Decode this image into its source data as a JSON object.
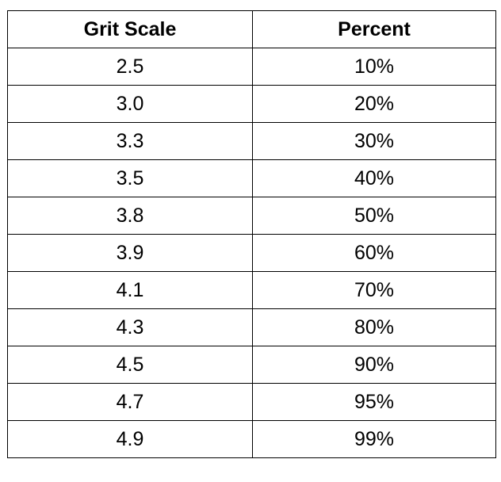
{
  "chart_data": {
    "type": "table",
    "columns": [
      "Grit Scale",
      "Percent"
    ],
    "rows": [
      [
        "2.5",
        "10%"
      ],
      [
        "3.0",
        "20%"
      ],
      [
        "3.3",
        "30%"
      ],
      [
        "3.5",
        "40%"
      ],
      [
        "3.8",
        "50%"
      ],
      [
        "3.9",
        "60%"
      ],
      [
        "4.1",
        "70%"
      ],
      [
        "4.3",
        "80%"
      ],
      [
        "4.5",
        "90%"
      ],
      [
        "4.7",
        "95%"
      ],
      [
        "4.9",
        "99%"
      ]
    ]
  }
}
